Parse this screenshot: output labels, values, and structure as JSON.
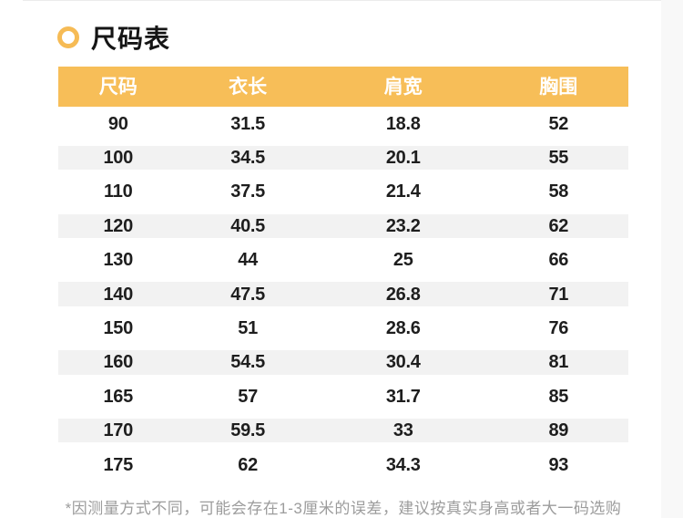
{
  "page": {
    "title": "尺码表"
  },
  "table": {
    "headers": [
      "尺码",
      "衣长",
      "肩宽",
      "胸围"
    ],
    "rows": [
      [
        "90",
        "31.5",
        "18.8",
        "52"
      ],
      [
        "100",
        "34.5",
        "20.1",
        "55"
      ],
      [
        "110",
        "37.5",
        "21.4",
        "58"
      ],
      [
        "120",
        "40.5",
        "23.2",
        "62"
      ],
      [
        "130",
        "44",
        "25",
        "66"
      ],
      [
        "140",
        "47.5",
        "26.8",
        "71"
      ],
      [
        "150",
        "51",
        "28.6",
        "76"
      ],
      [
        "160",
        "54.5",
        "30.4",
        "81"
      ],
      [
        "165",
        "57",
        "31.7",
        "85"
      ],
      [
        "170",
        "59.5",
        "33",
        "89"
      ],
      [
        "175",
        "62",
        "34.3",
        "93"
      ]
    ]
  },
  "footnote": "*因测量方式不同，可能会存在1-3厘米的误差，建议按真实身高或者大一码选购",
  "colors": {
    "accent": "#F7BE58",
    "stripe": "#F2F2F2",
    "note_text": "#9C9C9C",
    "header_text": "#FFFFFF"
  }
}
